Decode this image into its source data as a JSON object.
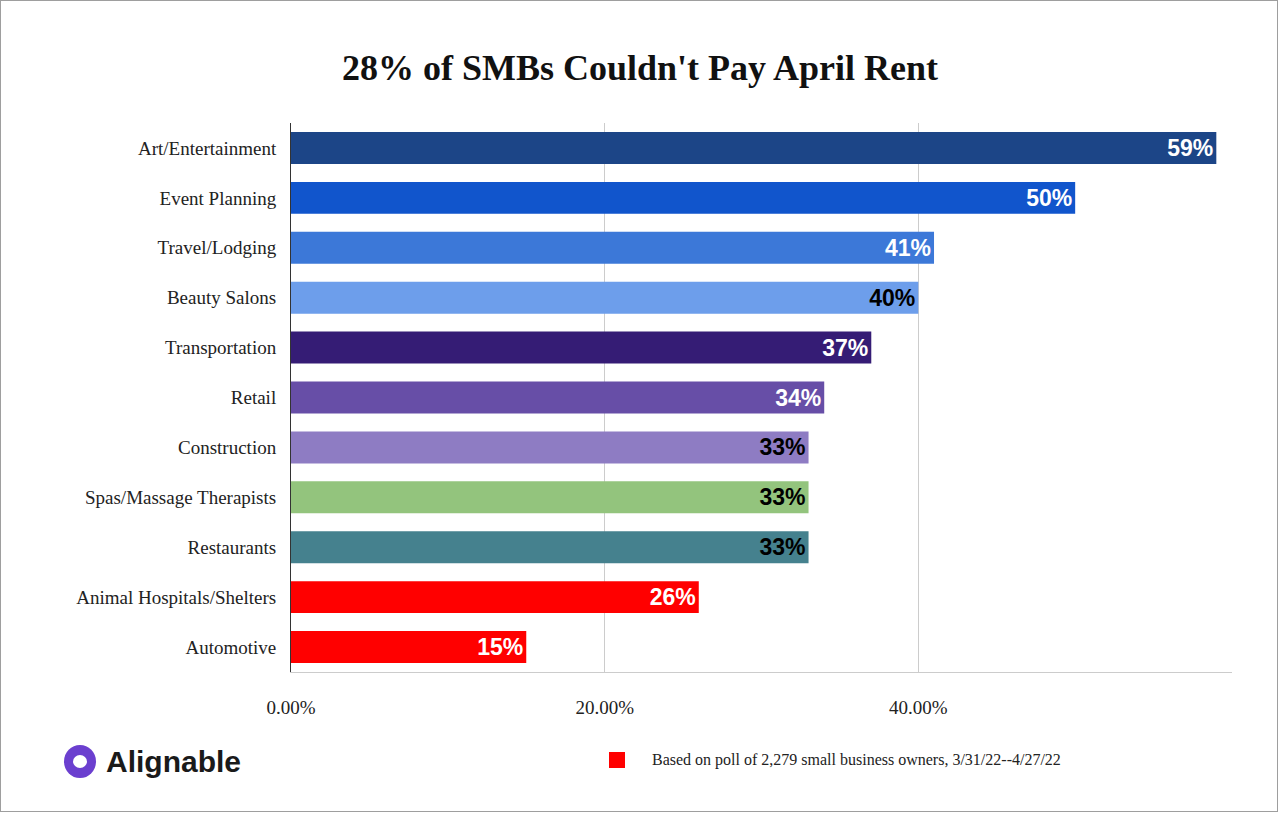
{
  "chart_data": {
    "type": "bar",
    "title": "28% of SMBs Couldn't Pay April Rent",
    "orientation": "horizontal",
    "categories": [
      "Art/Entertainment",
      "Event Planning",
      "Travel/Lodging",
      "Beauty Salons",
      "Transportation",
      "Retail",
      "Construction",
      "Spas/Massage Therapists",
      "Restaurants",
      "Animal Hospitals/Shelters",
      "Automotive"
    ],
    "values": [
      59,
      50,
      41,
      40,
      37,
      34,
      33,
      33,
      33,
      26,
      15
    ],
    "value_labels": [
      "59%",
      "50%",
      "41%",
      "40%",
      "37%",
      "34%",
      "33%",
      "33%",
      "33%",
      "26%",
      "15%"
    ],
    "colors": [
      "#1c4587",
      "#1155cc",
      "#3c78d8",
      "#6d9eeb",
      "#351c75",
      "#674ea7",
      "#8e7cc3",
      "#93c47d",
      "#45818e",
      "#ff0000",
      "#ff0000"
    ],
    "xlim": [
      0,
      60
    ],
    "xticks": [
      {
        "value": 0,
        "label": "0.00%"
      },
      {
        "value": 20,
        "label": "20.00%"
      },
      {
        "value": 40,
        "label": "40.00%"
      }
    ],
    "grid": true,
    "data_labels": true,
    "annotations": [
      "Alignable",
      "Based on poll of 2,279 small business owners, 3/31/22--4/27/22"
    ]
  }
}
